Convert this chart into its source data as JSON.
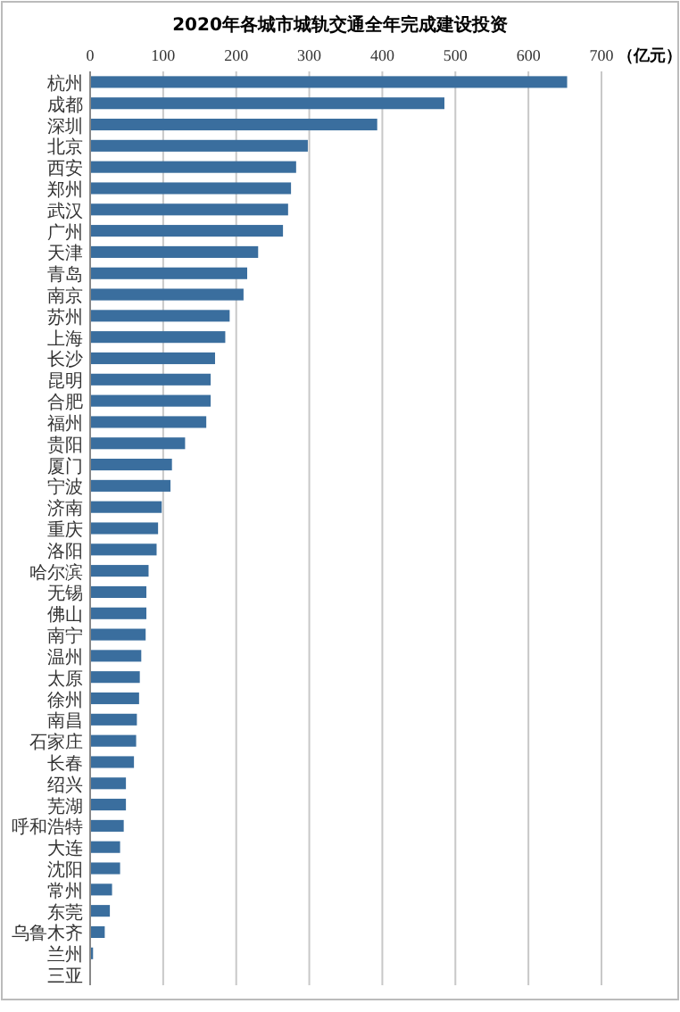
{
  "chart_data": {
    "type": "bar",
    "orientation": "horizontal",
    "title": "2020年各城市城轨交通全年完成建设投资",
    "xlabel": "（亿元）",
    "categories": [
      "杭州",
      "成都",
      "深圳",
      "北京",
      "西安",
      "郑州",
      "武汉",
      "广州",
      "天津",
      "青岛",
      "南京",
      "苏州",
      "上海",
      "长沙",
      "昆明",
      "合肥",
      "福州",
      "贵阳",
      "厦门",
      "宁波",
      "济南",
      "重庆",
      "洛阳",
      "哈尔滨",
      "无锡",
      "佛山",
      "南宁",
      "温州",
      "太原",
      "徐州",
      "南昌",
      "石家庄",
      "长春",
      "绍兴",
      "芜湖",
      "呼和浩特",
      "大连",
      "沈阳",
      "常州",
      "东莞",
      "乌鲁木齐",
      "兰州",
      "三亚"
    ],
    "values": [
      653,
      485,
      393,
      298,
      282,
      275,
      271,
      264,
      230,
      215,
      210,
      191,
      185,
      171,
      165,
      165,
      159,
      130,
      112,
      110,
      98,
      93,
      91,
      80,
      77,
      77,
      76,
      70,
      68,
      67,
      64,
      63,
      60,
      49,
      49,
      46,
      41,
      41,
      30,
      27,
      20,
      4,
      1
    ],
    "color": "#3a6e9e",
    "xlim": [
      0,
      700
    ],
    "xticks": [
      0,
      100,
      200,
      300,
      400,
      500,
      600,
      700
    ],
    "grid": "x"
  }
}
